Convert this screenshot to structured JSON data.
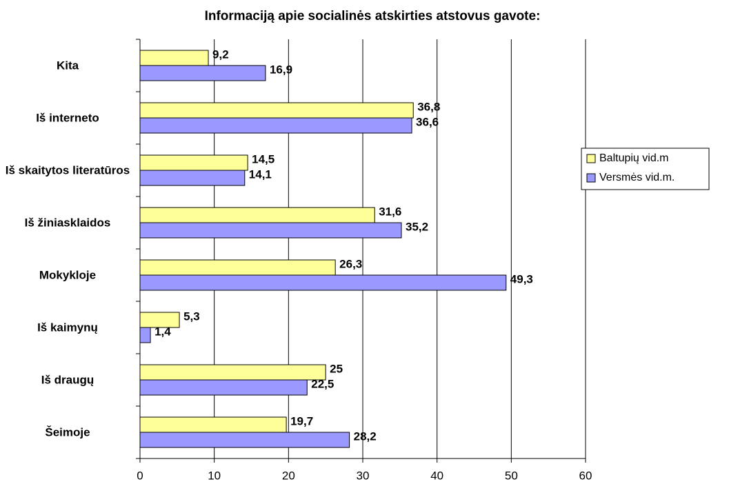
{
  "chart_data": {
    "type": "hbar",
    "title": "Informaciją apie socialinės atskirties atstovus gavote:",
    "categories": [
      "Kita",
      "Iš interneto",
      "Iš skaitytos literatūros",
      "Iš žiniasklaidos",
      "Mokykloje",
      "Iš kaimynų",
      "Iš draugų",
      "Šeimoje"
    ],
    "series": [
      {
        "name": "Baltupių vid.m",
        "color": "#ffff99",
        "values": [
          9.2,
          36.8,
          14.5,
          31.6,
          26.3,
          5.3,
          25,
          19.7
        ],
        "value_labels": [
          "9,2",
          "36,8",
          "14,5",
          "31,6",
          "26,3",
          "5,3",
          "25",
          "19,7"
        ]
      },
      {
        "name": "Versmės vid.m.",
        "color": "#9999ff",
        "values": [
          16.9,
          36.6,
          14.1,
          35.2,
          49.3,
          1.4,
          22.5,
          28.2
        ],
        "value_labels": [
          "16,9",
          "36,6",
          "14,1",
          "35,2",
          "49,3",
          "1,4",
          "22,5",
          "28,2"
        ]
      }
    ],
    "xlim": [
      0,
      60
    ],
    "xticks": [
      0,
      10,
      20,
      30,
      40,
      50,
      60
    ],
    "grid": true,
    "legend": "right"
  }
}
